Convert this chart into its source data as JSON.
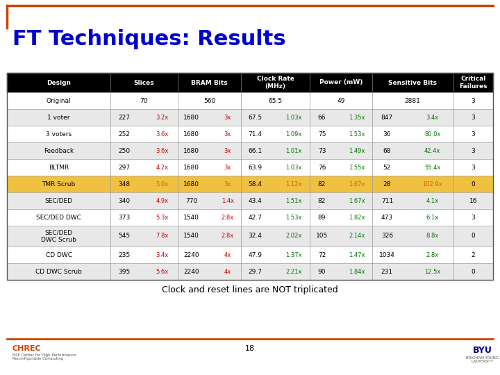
{
  "title": "FT Techniques: Results",
  "subtitle": "Clock and reset lines are NOT triplicated",
  "page_number": "18",
  "rows": [
    {
      "design": "Original",
      "slices": "70",
      "slices_ratio": "",
      "bram": "560",
      "bram_ratio": "",
      "clock": "65.5",
      "clock_ratio": "",
      "power": "49",
      "power_ratio": "",
      "sens": "2881",
      "sens_ratio": "",
      "critical": "3",
      "row_bg": "#ffffff",
      "highlight": false
    },
    {
      "design": "1 voter",
      "slices": "227",
      "slices_ratio": "3.2x",
      "bram": "1680",
      "bram_ratio": "3x",
      "clock": "67.5",
      "clock_ratio": "1.03x",
      "power": "66",
      "power_ratio": "1.35x",
      "sens": "847",
      "sens_ratio": "3.4x",
      "critical": "3",
      "row_bg": "#e8e8e8",
      "highlight": false
    },
    {
      "design": "3 voters",
      "slices": "252",
      "slices_ratio": "3.6x",
      "bram": "1680",
      "bram_ratio": "3x",
      "clock": "71.4",
      "clock_ratio": "1.09x",
      "power": "75",
      "power_ratio": "1.53x",
      "sens": "36",
      "sens_ratio": "80.0x",
      "critical": "3",
      "row_bg": "#ffffff",
      "highlight": false
    },
    {
      "design": "Feedback",
      "slices": "250",
      "slices_ratio": "3.6x",
      "bram": "1680",
      "bram_ratio": "3x",
      "clock": "66.1",
      "clock_ratio": "1.01x",
      "power": "73",
      "power_ratio": "1.49x",
      "sens": "68",
      "sens_ratio": "42.4x",
      "critical": "3",
      "row_bg": "#e8e8e8",
      "highlight": false
    },
    {
      "design": "BLTMR",
      "slices": "297",
      "slices_ratio": "4.2x",
      "bram": "1680",
      "bram_ratio": "3x",
      "clock": "63.9",
      "clock_ratio": "1.03x",
      "power": "76",
      "power_ratio": "1.55x",
      "sens": "52",
      "sens_ratio": "55.4x",
      "critical": "3",
      "row_bg": "#ffffff",
      "highlight": false
    },
    {
      "design": "TMR Scrub",
      "slices": "348",
      "slices_ratio": "5.0x",
      "bram": "1680",
      "bram_ratio": "3x",
      "clock": "58.4",
      "clock_ratio": "1.12x",
      "power": "82",
      "power_ratio": "1.67x",
      "sens": "28",
      "sens_ratio": "102.9x",
      "critical": "0",
      "row_bg": "#f0c040",
      "highlight": true
    },
    {
      "design": "SEC/DED",
      "slices": "340",
      "slices_ratio": "4.9x",
      "bram": "770",
      "bram_ratio": "1.4x",
      "clock": "43.4",
      "clock_ratio": "1.51x",
      "power": "82",
      "power_ratio": "1.67x",
      "sens": "711",
      "sens_ratio": "4.1x",
      "critical": "16",
      "row_bg": "#e8e8e8",
      "highlight": false
    },
    {
      "design": "SEC/DED DWC",
      "slices": "373",
      "slices_ratio": "5.3x",
      "bram": "1540",
      "bram_ratio": "2.8x",
      "clock": "42.7",
      "clock_ratio": "1.53x",
      "power": "89",
      "power_ratio": "1.82x",
      "sens": "473",
      "sens_ratio": "6.1x",
      "critical": "3",
      "row_bg": "#ffffff",
      "highlight": false
    },
    {
      "design": "SEC/DED\nDWC Scrub",
      "slices": "545",
      "slices_ratio": "7.8x",
      "bram": "1540",
      "bram_ratio": "2.8x",
      "clock": "32.4",
      "clock_ratio": "2.02x",
      "power": "105",
      "power_ratio": "2.14x",
      "sens": "326",
      "sens_ratio": "8.8x",
      "critical": "0",
      "row_bg": "#e8e8e8",
      "highlight": false
    },
    {
      "design": "CD DWC",
      "slices": "235",
      "slices_ratio": "3.4x",
      "bram": "2240",
      "bram_ratio": "4x",
      "clock": "47.9",
      "clock_ratio": "1.37x",
      "power": "72",
      "power_ratio": "1.47x",
      "sens": "1034",
      "sens_ratio": "2.8x",
      "critical": "2",
      "row_bg": "#ffffff",
      "highlight": false
    },
    {
      "design": "CD DWC Scrub",
      "slices": "395",
      "slices_ratio": "5.6x",
      "bram": "2240",
      "bram_ratio": "4x",
      "clock": "29.7",
      "clock_ratio": "2.21x",
      "power": "90",
      "power_ratio": "1.84x",
      "sens": "231",
      "sens_ratio": "12.5x",
      "critical": "0",
      "row_bg": "#e8e8e8",
      "highlight": false
    }
  ],
  "red_color": "#cc0000",
  "green_color": "#007700",
  "orange_color": "#cc6600",
  "title_color": "#0000cc",
  "accent_line_color": "#cc4400",
  "footer_line_color": "#cc4400",
  "header_bg": "#000000",
  "chrec_color": "#cc4400",
  "byu_color": "#000080"
}
